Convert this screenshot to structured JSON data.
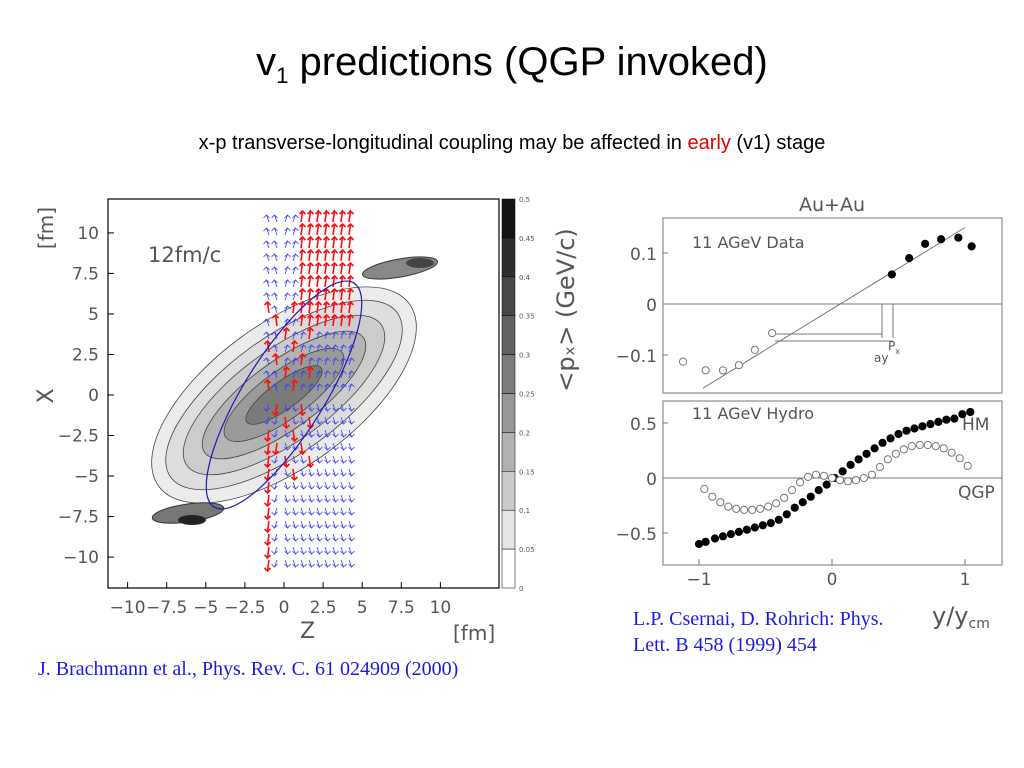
{
  "slide": {
    "title_main": "v",
    "title_sub": "1",
    "title_rest": " predictions (QGP invoked)",
    "subtitle_pre": "x-p transverse-longitudinal coupling may be affected in ",
    "subtitle_em": "early",
    "subtitle_post": " (v1) stage",
    "caption_left": "J. Brachmann et al., Phys. Rev. C. 61 024909 (2000)",
    "caption_right": "L.P. Csernai, D. Rohrich: Phys. Lett. B 458 (1999) 454",
    "colors": {
      "caption": "#1a1ae6",
      "highlight": "#e00000",
      "arrows_blue": "#3b3bff",
      "arrows_red": "#ff1010"
    }
  },
  "chart_data": [
    {
      "type": "heatmap",
      "annotation": "12fm/c",
      "xlabel": "Z",
      "xunit": "[fm]",
      "ylabel": "X",
      "yunit": "[fm]",
      "xlim": [
        -12.5,
        12.5
      ],
      "ylim": [
        -12,
        12
      ],
      "xticks": [
        -10,
        -7.5,
        -5,
        -2.5,
        0,
        2.5,
        5,
        7.5,
        10
      ],
      "xtick_labels": [
        "−10",
        "−7.5",
        "−5",
        "−2.5",
        "0",
        "2.5",
        "5",
        "7.5",
        "10"
      ],
      "yticks": [
        10,
        7.5,
        5,
        2.5,
        0,
        -2.5,
        -5,
        -7.5,
        -10
      ],
      "ytick_labels": [
        "10",
        "7.5",
        "5",
        "2.5",
        "0",
        "−2.5",
        "−5",
        "−7.5",
        "−10"
      ],
      "colorbar": {
        "label": "<pₓ> (GeV/c)",
        "levels": [
          0.5,
          0.45,
          0.4,
          0.35,
          0.3,
          0.25,
          0.2,
          0.15,
          0.1,
          0.05,
          0
        ],
        "level_labels": [
          "0.5",
          "0.45",
          "0.4",
          "0.35",
          "0.3",
          "0.25",
          "0.2",
          "0.15",
          "0.1",
          "0.05",
          "0"
        ]
      }
    },
    {
      "type": "scatter",
      "title": "Au+Au",
      "annotation": "11 AGeV Data",
      "ylim": [
        -0.17,
        0.17
      ],
      "yticks": [
        0.1,
        0,
        -0.1
      ],
      "ytick_labels": [
        "0.1",
        "0",
        "−0.1"
      ],
      "px_label": "P",
      "px_sub": "x",
      "ay_label": "ay",
      "series": [
        {
          "name": "",
          "marker": "filled",
          "x": [
            0.45,
            0.58,
            0.7,
            0.82,
            0.95,
            1.05
          ],
          "y": [
            0.058,
            0.09,
            0.118,
            0.127,
            0.13,
            0.113
          ]
        },
        {
          "name": "",
          "marker": "open",
          "x": [
            -1.12,
            -0.95,
            -0.82,
            -0.7,
            -0.58,
            -0.45
          ],
          "y": [
            -0.113,
            -0.13,
            -0.13,
            -0.12,
            -0.09,
            -0.057
          ]
        }
      ],
      "fit_line": {
        "x": [
          -0.97,
          1.0
        ],
        "y": [
          -0.165,
          0.15
        ]
      }
    },
    {
      "type": "scatter",
      "annotation": "11 AGeV Hydro",
      "xlabel": "y/y",
      "xlabel_sub": "cm",
      "xlim": [
        -1.3,
        1.28
      ],
      "ylim": [
        -0.73,
        0.73
      ],
      "xticks": [
        -1,
        0,
        1
      ],
      "xtick_labels": [
        "−1",
        "0",
        "1"
      ],
      "yticks": [
        0.5,
        0,
        -0.5
      ],
      "ytick_labels": [
        "0.5",
        "0",
        "−0.5"
      ],
      "series": [
        {
          "name": "HM",
          "marker": "filled",
          "x": [
            -1.0,
            -0.95,
            -0.88,
            -0.82,
            -0.76,
            -0.7,
            -0.64,
            -0.58,
            -0.52,
            -0.46,
            -0.4,
            -0.34,
            -0.28,
            -0.22,
            -0.16,
            -0.1,
            -0.04,
            0.02,
            0.08,
            0.14,
            0.2,
            0.26,
            0.32,
            0.38,
            0.44,
            0.5,
            0.56,
            0.62,
            0.68,
            0.74,
            0.8,
            0.86,
            0.92,
            0.98,
            1.04
          ],
          "y": [
            -0.6,
            -0.58,
            -0.55,
            -0.53,
            -0.51,
            -0.49,
            -0.47,
            -0.45,
            -0.43,
            -0.41,
            -0.38,
            -0.33,
            -0.27,
            -0.22,
            -0.17,
            -0.11,
            -0.06,
            0.0,
            0.06,
            0.12,
            0.17,
            0.22,
            0.27,
            0.32,
            0.36,
            0.4,
            0.43,
            0.45,
            0.47,
            0.49,
            0.51,
            0.53,
            0.54,
            0.58,
            0.6
          ]
        },
        {
          "name": "QGP",
          "marker": "open",
          "x": [
            -0.96,
            -0.9,
            -0.84,
            -0.78,
            -0.72,
            -0.66,
            -0.6,
            -0.54,
            -0.48,
            -0.42,
            -0.36,
            -0.3,
            -0.24,
            -0.18,
            -0.12,
            -0.06,
            0.0,
            0.06,
            0.12,
            0.18,
            0.24,
            0.3,
            0.36,
            0.42,
            0.48,
            0.54,
            0.6,
            0.66,
            0.72,
            0.78,
            0.84,
            0.9,
            0.96,
            1.02
          ],
          "y": [
            -0.1,
            -0.17,
            -0.22,
            -0.26,
            -0.28,
            -0.29,
            -0.29,
            -0.28,
            -0.26,
            -0.23,
            -0.18,
            -0.11,
            -0.04,
            0.01,
            0.03,
            0.02,
            0.0,
            -0.02,
            -0.03,
            -0.02,
            0.0,
            0.03,
            0.1,
            0.17,
            0.22,
            0.26,
            0.29,
            0.3,
            0.3,
            0.29,
            0.27,
            0.23,
            0.18,
            0.11
          ]
        }
      ]
    }
  ]
}
